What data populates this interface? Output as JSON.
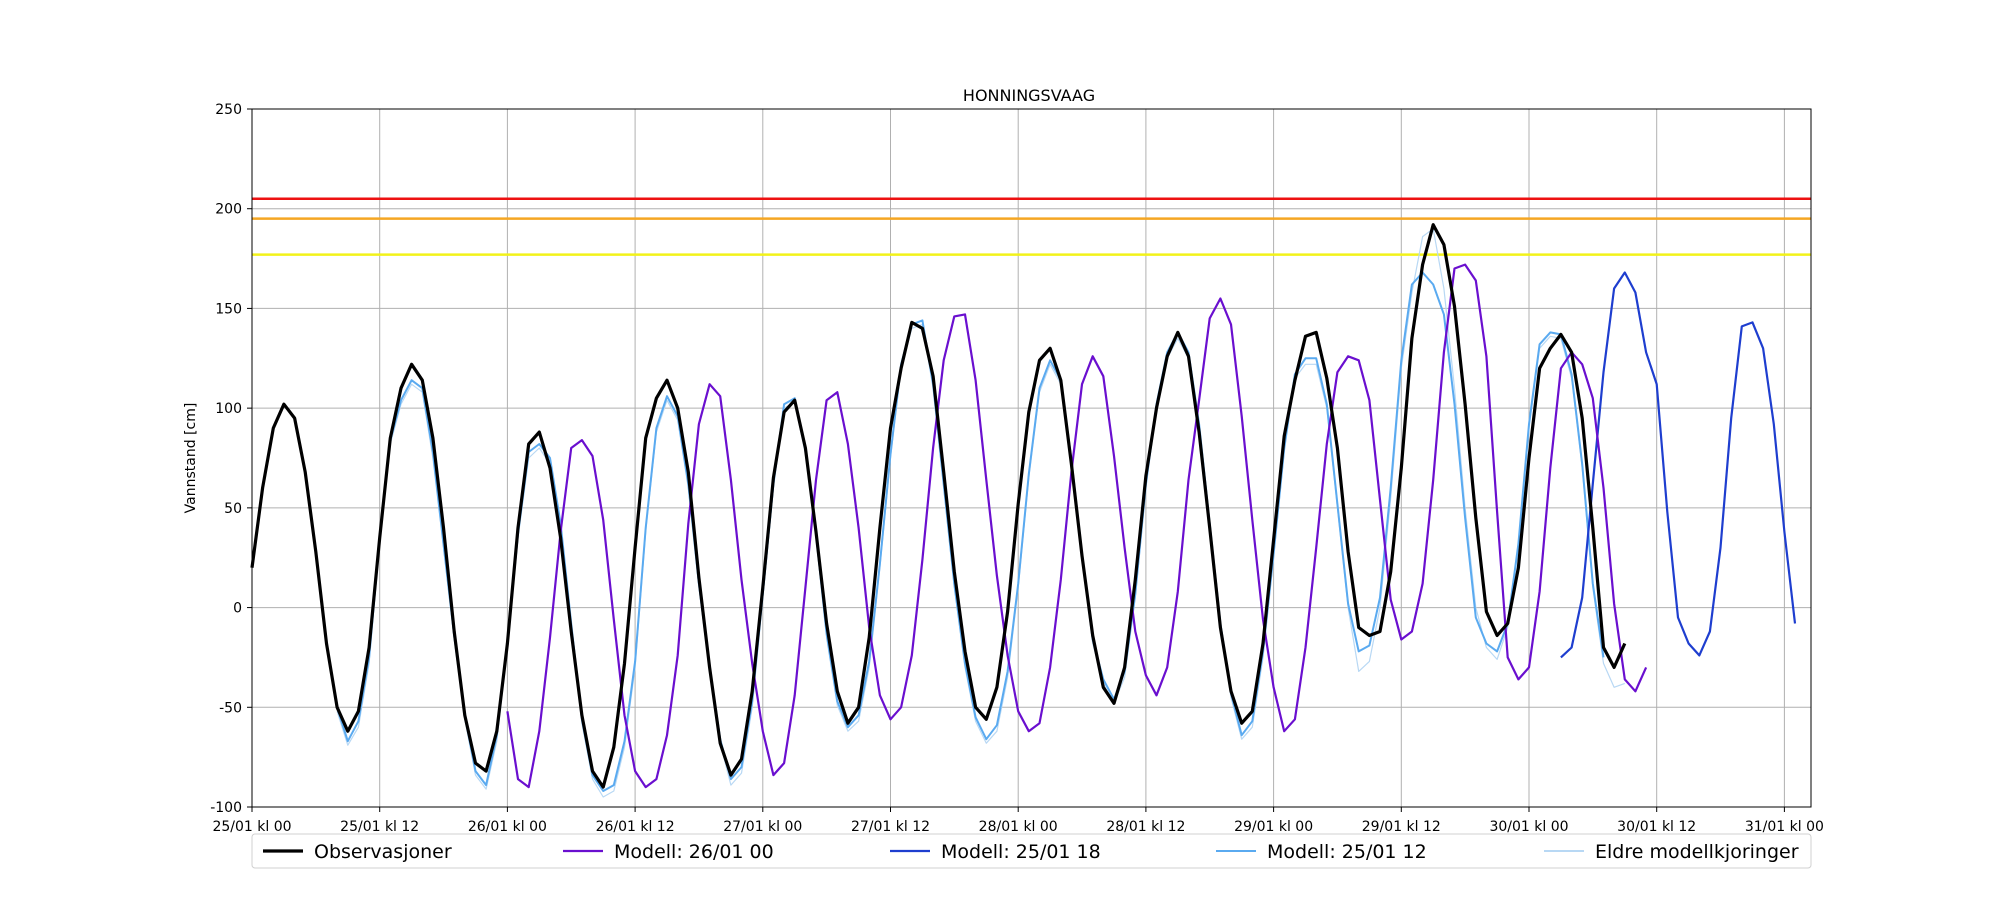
{
  "chart_data": {
    "type": "line",
    "title": "HONNINGSVAAG",
    "xlabel": "",
    "ylabel": "Vannstand [cm]",
    "ylim": [
      -100,
      250
    ],
    "yticks": [
      -100,
      -50,
      0,
      50,
      100,
      150,
      200,
      250
    ],
    "xlim_hours": [
      0,
      146.5
    ],
    "xticks": [
      {
        "h": 0,
        "label": "25/01 kl 00"
      },
      {
        "h": 12,
        "label": "25/01 kl 12"
      },
      {
        "h": 24,
        "label": "26/01 kl 00"
      },
      {
        "h": 36,
        "label": "26/01 kl 12"
      },
      {
        "h": 48,
        "label": "27/01 kl 00"
      },
      {
        "h": 60,
        "label": "27/01 kl 12"
      },
      {
        "h": 72,
        "label": "28/01 kl 00"
      },
      {
        "h": 84,
        "label": "28/01 kl 12"
      },
      {
        "h": 96,
        "label": "29/01 kl 00"
      },
      {
        "h": 108,
        "label": "29/01 kl 12"
      },
      {
        "h": 120,
        "label": "30/01 kl 00"
      },
      {
        "h": 132,
        "label": "30/01 kl 12"
      },
      {
        "h": 144,
        "label": "31/01 kl 00"
      }
    ],
    "grid": true,
    "legend_position": "bottom",
    "thresholds": [
      {
        "value": 205,
        "color": "#ee1111"
      },
      {
        "value": 195,
        "color": "#f5a623"
      },
      {
        "value": 177,
        "color": "#f2f21a"
      }
    ],
    "series": [
      {
        "name": "Eldre modellkjoringer",
        "color": "#b8d8f4",
        "width": 1.2,
        "values": [
          null,
          null,
          null,
          null,
          null,
          null,
          null,
          null,
          -52,
          -69,
          -60,
          -28,
          33,
          82,
          102,
          112,
          108,
          75,
          30,
          -16,
          -56,
          -84,
          -91,
          -67,
          -20,
          35,
          75,
          80,
          72,
          40,
          -10,
          -58,
          -86,
          -95,
          -92,
          -70,
          -30,
          38,
          88,
          104,
          94,
          60,
          10,
          -32,
          -68,
          -89,
          -83,
          -50,
          5,
          60,
          100,
          103,
          77,
          35,
          -15,
          -49,
          -62,
          -57,
          -30,
          20,
          75,
          120,
          140,
          142,
          110,
          60,
          10,
          -30,
          -57,
          -68,
          -62,
          -35,
          10,
          65,
          108,
          122,
          112,
          72,
          25,
          -18,
          -38,
          -48,
          -35,
          5,
          60,
          100,
          125,
          135,
          125,
          90,
          40,
          -10,
          -45,
          -66,
          -60,
          -25,
          25,
          78,
          115,
          122,
          122,
          100,
          50,
          0,
          -32,
          -27,
          0,
          55,
          120,
          158,
          186,
          190,
          160,
          110,
          50,
          0,
          -20,
          -26,
          -10,
          30,
          90,
          130,
          136,
          135,
          115,
          70,
          10,
          -28,
          -40,
          -38
        ]
      },
      {
        "name": "Modell: 25/01 12",
        "color": "#5aaaf0",
        "width": 2,
        "values": [
          null,
          null,
          null,
          null,
          null,
          null,
          null,
          null,
          -50,
          -67,
          -57,
          -25,
          35,
          84,
          104,
          114,
          110,
          78,
          32,
          -14,
          -54,
          -82,
          -89,
          -64,
          -17,
          37,
          78,
          82,
          75,
          42,
          -8,
          -56,
          -84,
          -92,
          -89,
          -67,
          -27,
          40,
          90,
          106,
          96,
          62,
          12,
          -30,
          -66,
          -86,
          -80,
          -47,
          7,
          62,
          102,
          105,
          79,
          37,
          -13,
          -47,
          -60,
          -54,
          -27,
          22,
          77,
          122,
          142,
          144,
          112,
          62,
          12,
          -28,
          -55,
          -66,
          -59,
          -32,
          12,
          67,
          110,
          124,
          114,
          74,
          27,
          -16,
          -36,
          -46,
          -32,
          7,
          62,
          102,
          128,
          138,
          128,
          92,
          42,
          -8,
          -43,
          -64,
          -57,
          -22,
          27,
          80,
          117,
          125,
          125,
          102,
          52,
          2,
          -22,
          -19,
          5,
          60,
          124,
          162,
          168,
          162,
          147,
          102,
          45,
          -5,
          -18,
          -22,
          -8,
          32,
          92,
          132,
          138,
          137,
          117,
          72,
          12,
          -25
        ]
      },
      {
        "name": "Modell: 25/01 18",
        "color": "#1e3ecf",
        "width": 2.2,
        "values": [
          null,
          null,
          null,
          null,
          null,
          null,
          null,
          null,
          null,
          null,
          null,
          null,
          null,
          null,
          null,
          null,
          null,
          null,
          null,
          null,
          null,
          null,
          null,
          null,
          null,
          null,
          null,
          null,
          null,
          null,
          null,
          null,
          null,
          null,
          null,
          null,
          null,
          null,
          null,
          null,
          null,
          null,
          null,
          null,
          null,
          null,
          null,
          null,
          null,
          null,
          null,
          null,
          null,
          null,
          null,
          null,
          null,
          null,
          null,
          null,
          null,
          null,
          null,
          null,
          null,
          null,
          null,
          null,
          null,
          null,
          null,
          null,
          null,
          null,
          null,
          null,
          null,
          null,
          null,
          null,
          null,
          null,
          null,
          null,
          null,
          null,
          null,
          null,
          null,
          null,
          null,
          null,
          null,
          null,
          null,
          null,
          null,
          null,
          null,
          null,
          null,
          null,
          null,
          null,
          null,
          null,
          null,
          null,
          null,
          null,
          null,
          null,
          null,
          null,
          null,
          null,
          null,
          null,
          null,
          null,
          null,
          null,
          null,
          -25,
          -20,
          5,
          62,
          118,
          160,
          168,
          158,
          128,
          112,
          48,
          -5,
          -18,
          -24,
          -12,
          30,
          95,
          141,
          143,
          130,
          92,
          38,
          -8
        ]
      },
      {
        "name": "Modell: 26/01 00",
        "color": "#6a0fcf",
        "width": 2.2,
        "values": [
          null,
          null,
          null,
          null,
          null,
          null,
          null,
          null,
          null,
          null,
          null,
          null,
          null,
          null,
          null,
          null,
          null,
          null,
          null,
          null,
          null,
          null,
          null,
          null,
          -52,
          -86,
          -90,
          -62,
          -15,
          38,
          80,
          84,
          76,
          44,
          -6,
          -54,
          -82,
          -90,
          -86,
          -64,
          -24,
          42,
          92,
          112,
          106,
          64,
          14,
          -28,
          -62,
          -84,
          -78,
          -44,
          10,
          64,
          104,
          108,
          82,
          40,
          -10,
          -44,
          -56,
          -50,
          -24,
          24,
          80,
          124,
          146,
          147,
          114,
          64,
          16,
          -24,
          -52,
          -62,
          -58,
          -30,
          14,
          68,
          112,
          126,
          116,
          76,
          30,
          -12,
          -34,
          -44,
          -30,
          8,
          64,
          104,
          145,
          155,
          142,
          96,
          44,
          -6,
          -40,
          -62,
          -56,
          -20,
          30,
          82,
          118,
          126,
          124,
          104,
          54,
          4,
          -16,
          -12,
          12,
          64,
          128,
          170,
          172,
          164,
          126,
          48,
          -25,
          -36,
          -30,
          8,
          70,
          120,
          128,
          122,
          105,
          60,
          2,
          -36,
          -42,
          -30
        ]
      },
      {
        "name": "Observasjoner",
        "color": "#000000",
        "width": 3.2,
        "values": [
          20,
          60,
          90,
          102,
          95,
          68,
          28,
          -18,
          -50,
          -62,
          -52,
          -20,
          35,
          85,
          110,
          122,
          114,
          85,
          40,
          -12,
          -54,
          -78,
          -82,
          -62,
          -18,
          40,
          82,
          88,
          70,
          35,
          -12,
          -54,
          -82,
          -90,
          -70,
          -28,
          30,
          85,
          105,
          114,
          100,
          68,
          15,
          -30,
          -68,
          -84,
          -76,
          -42,
          10,
          65,
          98,
          104,
          80,
          38,
          -8,
          -42,
          -58,
          -50,
          -15,
          40,
          90,
          120,
          143,
          140,
          116,
          68,
          18,
          -22,
          -50,
          -56,
          -40,
          -2,
          52,
          98,
          124,
          130,
          114,
          72,
          26,
          -14,
          -40,
          -48,
          -30,
          14,
          66,
          100,
          126,
          138,
          126,
          88,
          40,
          -10,
          -42,
          -58,
          -52,
          -18,
          34,
          86,
          114,
          136,
          138,
          115,
          80,
          28,
          -10,
          -14,
          -12,
          18,
          70,
          135,
          172,
          192,
          182,
          151,
          102,
          45,
          -2,
          -14,
          -8,
          20,
          75,
          120,
          130,
          137,
          128,
          95,
          40,
          -20,
          -30,
          -18
        ]
      }
    ],
    "legend_order": [
      "Observasjoner",
      "Modell: 26/01 00",
      "Modell: 25/01 18",
      "Modell: 25/01 12",
      "Eldre modellkjoringer"
    ]
  }
}
